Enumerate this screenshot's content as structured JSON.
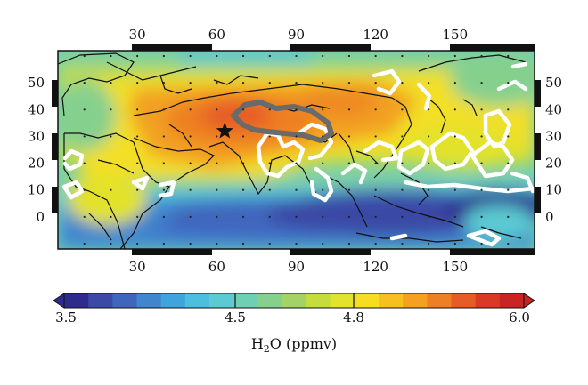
{
  "map": {
    "lon_ticks": [
      "30",
      "60",
      "90",
      "120",
      "150"
    ],
    "lat_ticks": [
      "50",
      "40",
      "30",
      "20",
      "10",
      "0"
    ],
    "lon_values": [
      30,
      60,
      90,
      120,
      150
    ],
    "lat_values": [
      50,
      40,
      30,
      20,
      10,
      0
    ],
    "lon_range": [
      0,
      180
    ],
    "lat_range": [
      -12,
      62
    ],
    "marker": {
      "symbol": "star",
      "lon": 63,
      "lat": 32
    }
  },
  "colorbar": {
    "tick_labels": [
      "3.5",
      "4.5",
      "4.8",
      "6.0"
    ],
    "unit_label_main": "H",
    "unit_label_sub": "2",
    "unit_label_tail": "O (ppmv)",
    "colors": [
      "#2e2b8c",
      "#3a4aa6",
      "#3f66bd",
      "#3f86cf",
      "#3fa3dc",
      "#4bbfe0",
      "#5ccad2",
      "#6fcfb3",
      "#86d08e",
      "#a3d366",
      "#c4dc3e",
      "#e3e22c",
      "#f6dd22",
      "#f7c020",
      "#f5a021",
      "#ef7f24",
      "#e65c25",
      "#d93a26",
      "#c92323"
    ]
  },
  "colors": {
    "high": "#e65c25",
    "mid": "#a3d366",
    "low": "#3a4aa6",
    "contour_white": "#ffffff",
    "contour_grey": "#6a6a6a"
  }
}
